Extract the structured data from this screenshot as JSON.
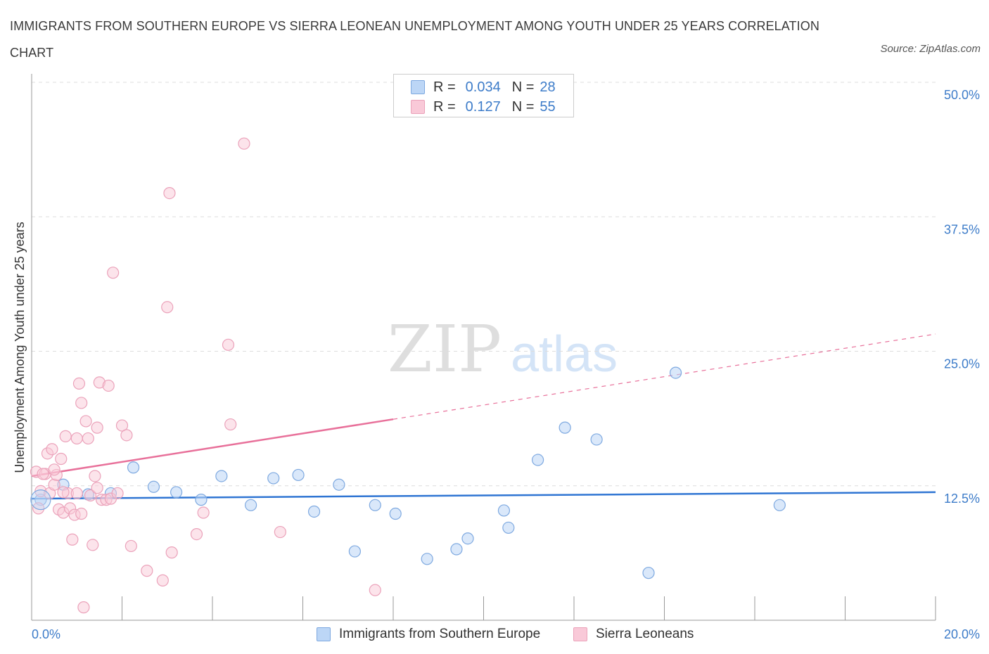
{
  "title": "IMMIGRANTS FROM SOUTHERN EUROPE VS SIERRA LEONEAN UNEMPLOYMENT AMONG YOUTH UNDER 25 YEARS CORRELATION CHART",
  "source": "Source: ZipAtlas.com",
  "watermark": {
    "zip": "ZIP",
    "atlas": "atlas"
  },
  "legend": {
    "r_label": "R =",
    "n_label": "N =",
    "rows": [
      {
        "r": "0.034",
        "n": "28"
      },
      {
        "r": "0.127",
        "n": "55"
      }
    ]
  },
  "chart_data": {
    "type": "scatter",
    "title": "IMMIGRANTS FROM SOUTHERN EUROPE VS SIERRA LEONEAN UNEMPLOYMENT AMONG YOUTH UNDER 25 YEARS CORRELATION CHART",
    "xlabel": "",
    "ylabel": "Unemployment Among Youth under 25 years",
    "xlim": [
      0,
      20
    ],
    "ylim": [
      0,
      50
    ],
    "x_tick_labels": [
      "0.0%",
      "20.0%"
    ],
    "y_tick_labels": [
      "12.5%",
      "25.0%",
      "37.5%",
      "50.0%"
    ],
    "y_tick_values": [
      12.5,
      25,
      37.5,
      50
    ],
    "grid": true,
    "legend_position": "top-center",
    "series": [
      {
        "name": "Immigrants from Southern Europe",
        "color": "#a9c8f0",
        "line_color": "#2f75d3",
        "trend": {
          "x": [
            0,
            20
          ],
          "y": [
            11.3,
            11.9
          ],
          "dashed_from": null
        },
        "points": [
          [
            0.2,
            11.2
          ],
          [
            0.7,
            12.6
          ],
          [
            1.25,
            11.7
          ],
          [
            1.75,
            11.8
          ],
          [
            2.25,
            14.2
          ],
          [
            2.7,
            12.4
          ],
          [
            3.2,
            11.9
          ],
          [
            3.75,
            11.2
          ],
          [
            4.2,
            13.4
          ],
          [
            4.85,
            10.7
          ],
          [
            5.35,
            13.2
          ],
          [
            5.9,
            13.5
          ],
          [
            6.25,
            10.1
          ],
          [
            6.8,
            12.6
          ],
          [
            7.15,
            6.4
          ],
          [
            7.6,
            10.7
          ],
          [
            8.05,
            9.9
          ],
          [
            8.75,
            5.7
          ],
          [
            9.4,
            6.6
          ],
          [
            9.65,
            7.6
          ],
          [
            10.45,
            10.2
          ],
          [
            10.55,
            8.6
          ],
          [
            11.2,
            14.9
          ],
          [
            11.8,
            17.9
          ],
          [
            12.5,
            16.8
          ],
          [
            13.65,
            4.4
          ],
          [
            14.25,
            23.0
          ],
          [
            16.55,
            10.7
          ]
        ]
      },
      {
        "name": "Sierra Leoneans",
        "color": "#f5b8cc",
        "line_color": "#e8709a",
        "trend": {
          "x": [
            0,
            20
          ],
          "y": [
            13.4,
            26.6
          ],
          "dashed_from": 8
        },
        "points": [
          [
            0.1,
            13.8
          ],
          [
            0.15,
            10.4
          ],
          [
            0.2,
            12.0
          ],
          [
            0.3,
            13.6
          ],
          [
            0.35,
            15.5
          ],
          [
            0.4,
            11.8
          ],
          [
            0.45,
            15.9
          ],
          [
            0.5,
            12.6
          ],
          [
            0.55,
            13.5
          ],
          [
            0.6,
            10.3
          ],
          [
            0.65,
            15.0
          ],
          [
            0.7,
            10.0
          ],
          [
            0.75,
            17.1
          ],
          [
            0.8,
            11.8
          ],
          [
            0.85,
            10.4
          ],
          [
            0.9,
            7.5
          ],
          [
            0.95,
            9.8
          ],
          [
            1.0,
            11.8
          ],
          [
            1.0,
            16.9
          ],
          [
            1.05,
            22.0
          ],
          [
            1.1,
            20.2
          ],
          [
            1.15,
            1.2
          ],
          [
            1.2,
            18.5
          ],
          [
            1.25,
            16.9
          ],
          [
            1.3,
            11.6
          ],
          [
            1.35,
            7.0
          ],
          [
            1.4,
            13.4
          ],
          [
            1.45,
            17.9
          ],
          [
            1.5,
            22.1
          ],
          [
            1.55,
            11.2
          ],
          [
            1.65,
            11.2
          ],
          [
            1.7,
            21.8
          ],
          [
            1.75,
            11.3
          ],
          [
            1.8,
            32.3
          ],
          [
            1.9,
            11.8
          ],
          [
            2.0,
            18.1
          ],
          [
            2.1,
            17.2
          ],
          [
            2.2,
            6.9
          ],
          [
            2.55,
            4.6
          ],
          [
            2.9,
            3.7
          ],
          [
            3.0,
            29.1
          ],
          [
            3.05,
            39.7
          ],
          [
            3.1,
            6.3
          ],
          [
            3.65,
            8.0
          ],
          [
            3.8,
            10.0
          ],
          [
            4.35,
            25.6
          ],
          [
            4.4,
            18.2
          ],
          [
            4.7,
            44.3
          ],
          [
            5.5,
            8.2
          ],
          [
            7.6,
            2.8
          ],
          [
            0.25,
            13.6
          ],
          [
            0.5,
            14.0
          ],
          [
            1.1,
            9.9
          ],
          [
            0.7,
            11.9
          ],
          [
            1.45,
            12.3
          ]
        ]
      }
    ]
  }
}
